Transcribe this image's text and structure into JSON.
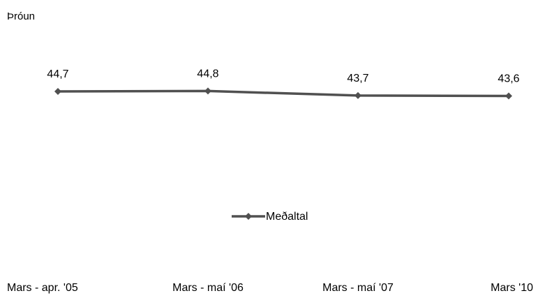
{
  "chart_data": {
    "type": "line",
    "title": "Þróun",
    "xlabel": "",
    "ylabel": "",
    "categories": [
      "Mars - apr. '05",
      "Mars - maí '06",
      "Mars - maí '07",
      "Mars '10"
    ],
    "series": [
      {
        "name": "Meðaltal",
        "values": [
          44.7,
          44.8,
          43.7,
          43.6
        ],
        "labels": [
          "44,7",
          "44,8",
          "43,7",
          "43,6"
        ]
      }
    ],
    "ylim": [
      0,
      50
    ],
    "grid": false,
    "legend": "bottom-center",
    "colors": {
      "line": "#505050",
      "marker": "#505050"
    }
  }
}
